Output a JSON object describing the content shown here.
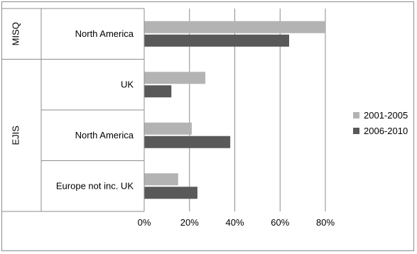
{
  "chart_data": {
    "type": "bar",
    "orientation": "horizontal",
    "groups": [
      {
        "name": "MISQ",
        "categories": [
          "North America"
        ]
      },
      {
        "name": "EJIS",
        "categories": [
          "UK",
          "North America",
          "Europe not inc. UK"
        ]
      }
    ],
    "categories": [
      "MISQ / North America",
      "EJIS / UK",
      "EJIS / North America",
      "EJIS / Europe not inc. UK"
    ],
    "category_labels": [
      "North America",
      "UK",
      "North America",
      "Europe not inc. UK"
    ],
    "series": [
      {
        "name": "2001-2005",
        "color": "#b3b3b3",
        "values": [
          0.8,
          0.27,
          0.21,
          0.15
        ]
      },
      {
        "name": "2006-2010",
        "color": "#595959",
        "values": [
          0.64,
          0.12,
          0.38,
          0.235
        ]
      }
    ],
    "x_ticks": [
      "0%",
      "20%",
      "40%",
      "60%",
      "80%"
    ],
    "xlim": [
      0,
      0.8
    ],
    "grid": true,
    "legend_position": "right",
    "title": "",
    "xlabel": "",
    "ylabel": ""
  }
}
